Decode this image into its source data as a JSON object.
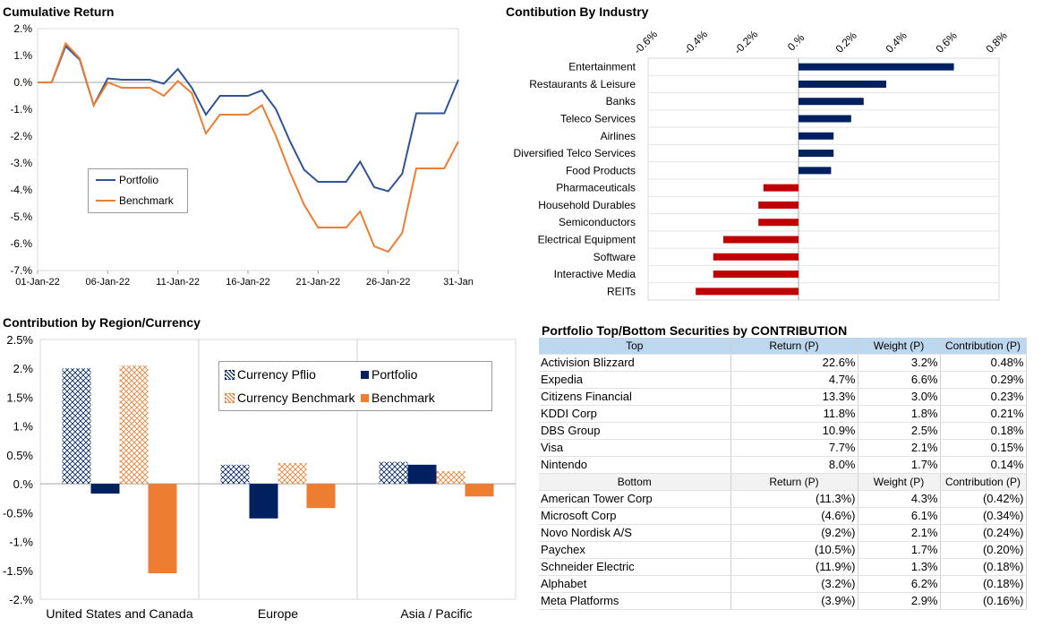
{
  "cumulative_return": {
    "title": "Cumulative Return",
    "legend": {
      "portfolio": "Portfolio",
      "benchmark": "Benchmark"
    }
  },
  "industry": {
    "title": "Contibution By Industry"
  },
  "region": {
    "title": "Contribution by Region/Currency"
  },
  "securities": {
    "title": "Portfolio Top/Bottom Securities by CONTRIBUTION",
    "top_header": [
      "Top",
      "Return (P)",
      "Weight (P)",
      "Contribution (P)"
    ],
    "top_rows": [
      [
        "Activision Blizzard",
        "22.6%",
        "3.2%",
        "0.48%"
      ],
      [
        "Expedia",
        "4.7%",
        "6.6%",
        "0.29%"
      ],
      [
        "Citizens Financial",
        "13.3%",
        "3.0%",
        "0.23%"
      ],
      [
        "KDDI Corp",
        "11.8%",
        "1.8%",
        "0.21%"
      ],
      [
        "DBS Group",
        "10.9%",
        "2.5%",
        "0.18%"
      ],
      [
        "Visa",
        "7.7%",
        "2.1%",
        "0.15%"
      ],
      [
        "Nintendo",
        "8.0%",
        "1.7%",
        "0.14%"
      ]
    ],
    "bottom_header": [
      "Bottom",
      "Return (P)",
      "Weight (P)",
      "Contribution (P)"
    ],
    "bottom_rows": [
      [
        "American Tower Corp",
        "(11.3%)",
        "4.3%",
        "(0.42%)"
      ],
      [
        "Microsoft Corp",
        "(4.6%)",
        "6.1%",
        "(0.34%)"
      ],
      [
        "Novo Nordisk A/S",
        "(9.2%)",
        "2.1%",
        "(0.24%)"
      ],
      [
        "Paychex",
        "(10.5%)",
        "1.7%",
        "(0.20%)"
      ],
      [
        "Schneider Electric",
        "(11.9%)",
        "1.3%",
        "(0.18%)"
      ],
      [
        "Alphabet",
        "(3.2%)",
        "6.2%",
        "(0.18%)"
      ],
      [
        "Meta Platforms",
        "(3.9%)",
        "2.9%",
        "(0.16%)"
      ]
    ]
  },
  "colors": {
    "portfolio_line": "#2f5597",
    "benchmark_line": "#ed7d31",
    "navy": "#002060",
    "orange": "#ed7d31",
    "red": "#c00000"
  },
  "chart_data": [
    {
      "type": "line",
      "title": "Cumulative Return",
      "x": [
        "01-Jan-22",
        "02-Jan-22",
        "03-Jan-22",
        "04-Jan-22",
        "05-Jan-22",
        "06-Jan-22",
        "07-Jan-22",
        "08-Jan-22",
        "09-Jan-22",
        "10-Jan-22",
        "11-Jan-22",
        "12-Jan-22",
        "13-Jan-22",
        "14-Jan-22",
        "15-Jan-22",
        "16-Jan-22",
        "17-Jan-22",
        "18-Jan-22",
        "19-Jan-22",
        "20-Jan-22",
        "21-Jan-22",
        "22-Jan-22",
        "23-Jan-22",
        "24-Jan-22",
        "25-Jan-22",
        "26-Jan-22",
        "27-Jan-22",
        "28-Jan-22",
        "29-Jan-22",
        "30-Jan-22",
        "31-Jan-22"
      ],
      "x_tick_labels": [
        "01-Jan-22",
        "06-Jan-22",
        "11-Jan-22",
        "16-Jan-22",
        "21-Jan-22",
        "26-Jan-22",
        "31-Jan"
      ],
      "series": [
        {
          "name": "Portfolio",
          "values": [
            0.0,
            0.0,
            1.35,
            0.85,
            -0.85,
            0.15,
            0.1,
            0.1,
            0.1,
            -0.05,
            0.5,
            -0.2,
            -1.2,
            -0.5,
            -0.5,
            -0.5,
            -0.3,
            -1.0,
            -2.2,
            -3.25,
            -3.7,
            -3.7,
            -3.7,
            -2.95,
            -3.9,
            -4.05,
            -3.4,
            -1.15,
            -1.15,
            -1.15,
            0.1
          ]
        },
        {
          "name": "Benchmark",
          "values": [
            0.0,
            0.0,
            1.45,
            0.9,
            -0.85,
            0.0,
            -0.2,
            -0.2,
            -0.2,
            -0.5,
            0.05,
            -0.4,
            -1.9,
            -1.2,
            -1.2,
            -1.2,
            -0.85,
            -2.0,
            -3.35,
            -4.55,
            -5.4,
            -5.4,
            -5.4,
            -4.8,
            -6.1,
            -6.3,
            -5.6,
            -3.2,
            -3.2,
            -3.2,
            -2.2
          ]
        }
      ],
      "yticks": [
        "2.%",
        "1.%",
        "0.%",
        "-1.%",
        "-2.%",
        "-3.%",
        "-4.%",
        "-5.%",
        "-6.%",
        "-7.%"
      ],
      "ylim": [
        -7,
        2
      ],
      "legend_position": "center-left"
    },
    {
      "type": "bar",
      "orientation": "horizontal",
      "title": "Contibution By Industry",
      "categories": [
        "Entertainment",
        "Restaurants & Leisure",
        "Banks",
        "Teleco Services",
        "Airlines",
        "Diversified Telco Services",
        "Food Products",
        "Pharmaceuticals",
        "Household Durables",
        "Semiconductors",
        "Electrical Equipment",
        "Software",
        "Interactive Media",
        "REITs"
      ],
      "values": [
        0.62,
        0.35,
        0.26,
        0.21,
        0.14,
        0.14,
        0.13,
        -0.14,
        -0.16,
        -0.16,
        -0.3,
        -0.34,
        -0.34,
        -0.41
      ],
      "xticks": [
        "-0.6%",
        "-0.4%",
        "-0.2%",
        "0.%",
        "0.2%",
        "0.4%",
        "0.6%",
        "0.8%"
      ],
      "xlim": [
        -0.6,
        0.8
      ],
      "colors": {
        "positive": "#002060",
        "negative": "#c00000"
      }
    },
    {
      "type": "bar",
      "title": "Contribution by Region/Currency",
      "categories": [
        "United States and Canada",
        "Europe",
        "Asia / Pacific"
      ],
      "series": [
        {
          "name": "Currency Pflio",
          "values": [
            2.0,
            0.33,
            0.38
          ],
          "pattern": "crosshatch",
          "color": "#002060"
        },
        {
          "name": "Portfolio",
          "values": [
            -0.17,
            -0.6,
            0.33
          ],
          "color": "#002060"
        },
        {
          "name": "Currency Benchmark",
          "values": [
            2.05,
            0.36,
            0.22
          ],
          "pattern": "crosshatch",
          "color": "#ed7d31"
        },
        {
          "name": "Benchmark",
          "values": [
            -1.55,
            -0.42,
            -0.22
          ],
          "color": "#ed7d31"
        }
      ],
      "yticks": [
        "2.5%",
        "2.%",
        "1.5%",
        "1.%",
        "0.5%",
        "0.%",
        "-0.5%",
        "-1.%",
        "-1.5%",
        "-2.%"
      ],
      "ylim": [
        -2,
        2.5
      ],
      "legend_position": "top-right"
    }
  ]
}
